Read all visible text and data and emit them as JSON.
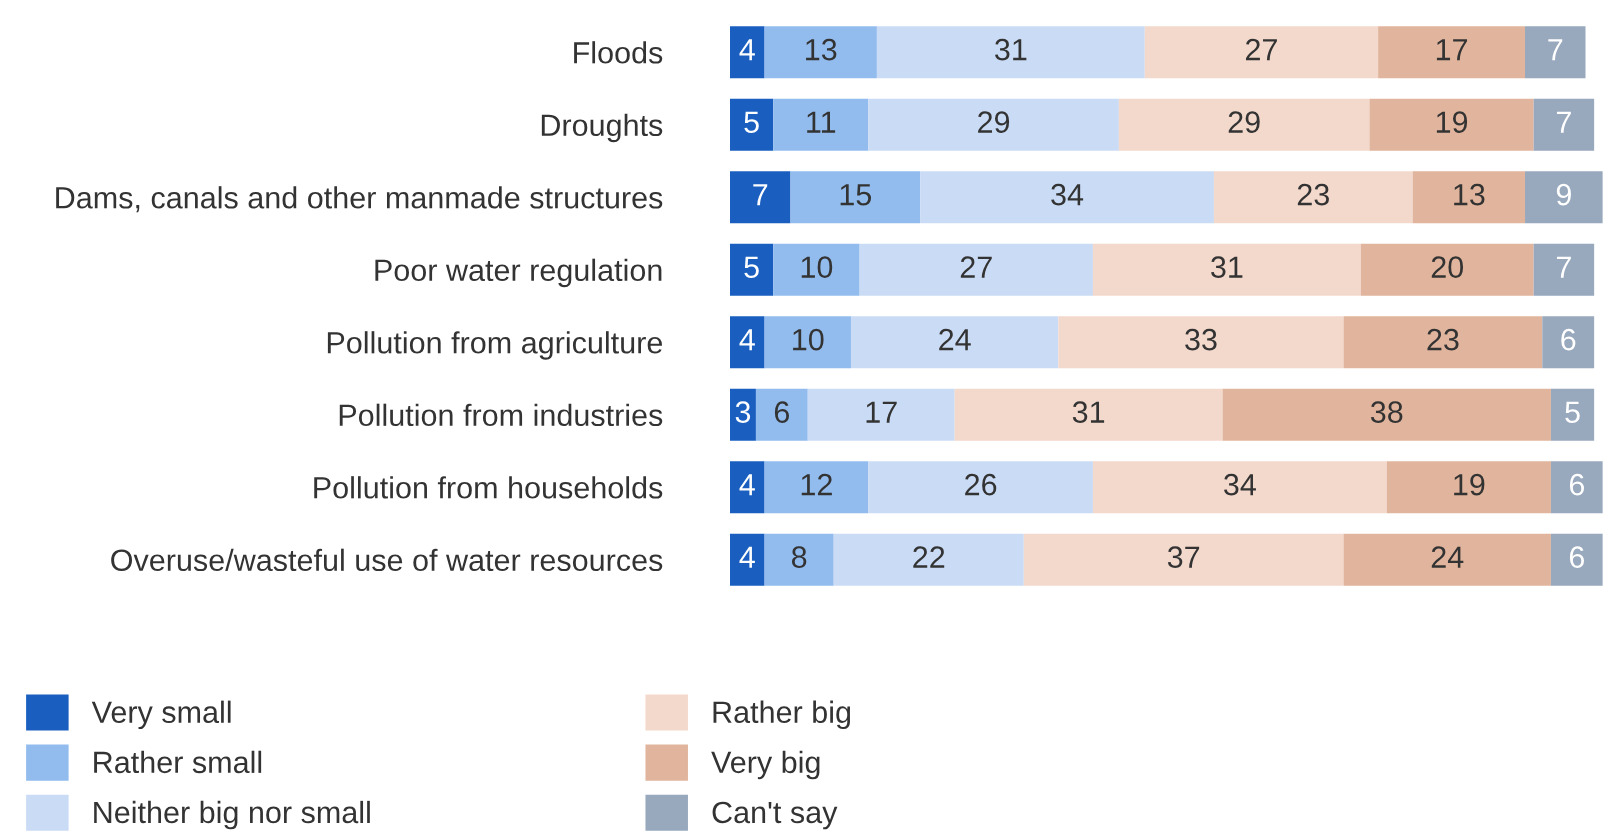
{
  "chart_data": {
    "type": "bar",
    "orientation": "horizontal",
    "stacked": true,
    "data_labels": true,
    "legend": "bottom left",
    "grid": false,
    "categories": [
      "Floods",
      "Droughts",
      "Dams, canals and other manmade structures",
      "Poor water regulation",
      "Pollution from agriculture",
      "Pollution from industries",
      "Pollution from households",
      "Overuse/wasteful use of water resources"
    ],
    "series": [
      {
        "name": "Very small",
        "color": "#1a5fc0",
        "values": [
          4,
          5,
          7,
          5,
          4,
          3,
          4,
          4
        ]
      },
      {
        "name": "Rather small",
        "color": "#93bcee",
        "values": [
          13,
          11,
          15,
          10,
          10,
          6,
          12,
          8
        ]
      },
      {
        "name": "Neither big nor small",
        "color": "#cadcf5",
        "values": [
          31,
          29,
          34,
          27,
          24,
          17,
          26,
          22
        ]
      },
      {
        "name": "Rather big",
        "color": "#f3d9cc",
        "values": [
          27,
          29,
          23,
          31,
          33,
          31,
          34,
          37
        ]
      },
      {
        "name": "Very big",
        "color": "#e1b59d",
        "values": [
          17,
          19,
          13,
          20,
          23,
          38,
          19,
          24
        ]
      },
      {
        "name": "Can't say",
        "color": "#98a9be",
        "values": [
          7,
          7,
          9,
          7,
          6,
          5,
          6,
          6
        ]
      }
    ]
  }
}
